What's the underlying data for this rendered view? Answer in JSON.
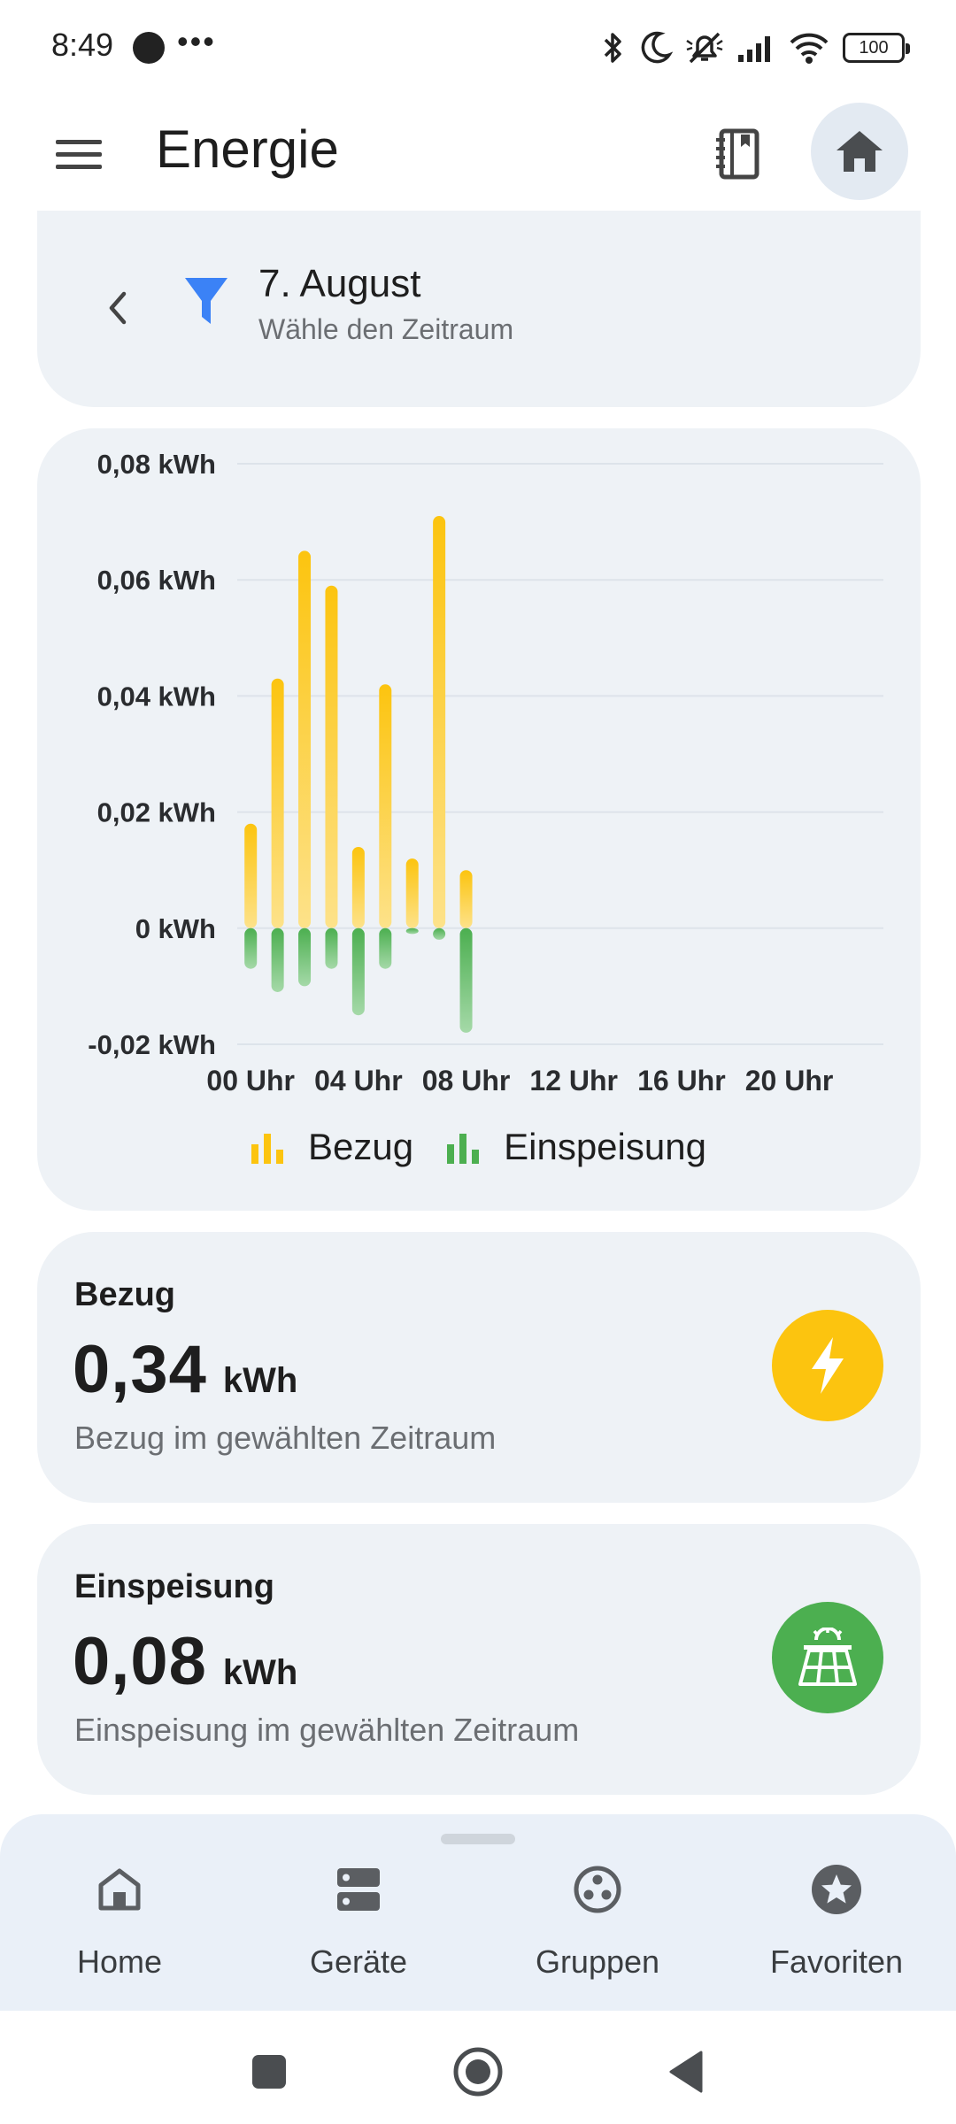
{
  "status_bar": {
    "time": "8:49",
    "more": "•••",
    "battery": "100"
  },
  "app_bar": {
    "title": "Energie",
    "icons": [
      "menu-icon",
      "book-icon",
      "home-icon"
    ]
  },
  "date_filter": {
    "title": "7. August",
    "subtitle": "Wähle den Zeitraum",
    "icons": [
      "chevron-left-icon",
      "filter-icon"
    ]
  },
  "chart_data": {
    "type": "bar",
    "categories": [
      "00 Uhr",
      "01 Uhr",
      "02 Uhr",
      "03 Uhr",
      "04 Uhr",
      "05 Uhr",
      "06 Uhr",
      "07 Uhr",
      "08 Uhr"
    ],
    "x_tick_labels": [
      "00 Uhr",
      "04 Uhr",
      "08 Uhr",
      "12 Uhr",
      "16 Uhr",
      "20 Uhr"
    ],
    "y_tick_labels": [
      "0,08 kWh",
      "0,06 kWh",
      "0,04 kWh",
      "0,02 kWh",
      "0 kWh",
      "-0,02 kWh"
    ],
    "y_ticks": [
      0.08,
      0.06,
      0.04,
      0.02,
      0,
      -0.02
    ],
    "ylim": [
      -0.02,
      0.08
    ],
    "hours_total": 24,
    "series": [
      {
        "name": "Bezug",
        "color": "#fcc40f",
        "values": [
          0.018,
          0.043,
          0.065,
          0.059,
          0.014,
          0.042,
          0.012,
          0.071,
          0.01
        ]
      },
      {
        "name": "Einspeisung",
        "color": "#4caf50",
        "values": [
          -0.007,
          -0.011,
          -0.01,
          -0.007,
          -0.015,
          -0.007,
          -0.001,
          -0.002,
          -0.018
        ]
      }
    ],
    "grid": true,
    "legend_position": "bottom-center"
  },
  "stats": {
    "bezug": {
      "label": "Bezug",
      "value": "0,34",
      "unit": "kWh",
      "description": "Bezug im gewählten Zeitraum",
      "icon": "lightning-icon",
      "color": "#fcc40f"
    },
    "einspeisung": {
      "label": "Einspeisung",
      "value": "0,08",
      "unit": "kWh",
      "description": "Einspeisung im gewählten Zeitraum",
      "icon": "solar-panel-icon",
      "color": "#4caf50"
    }
  },
  "bottom_nav": {
    "items": [
      {
        "label": "Home",
        "icon": "home-outline-icon"
      },
      {
        "label": "Geräte",
        "icon": "devices-icon"
      },
      {
        "label": "Gruppen",
        "icon": "groups-icon"
      },
      {
        "label": "Favoriten",
        "icon": "star-icon"
      }
    ]
  },
  "system_nav": {
    "icons": [
      "recents-icon",
      "home-circle-icon",
      "back-icon"
    ]
  }
}
